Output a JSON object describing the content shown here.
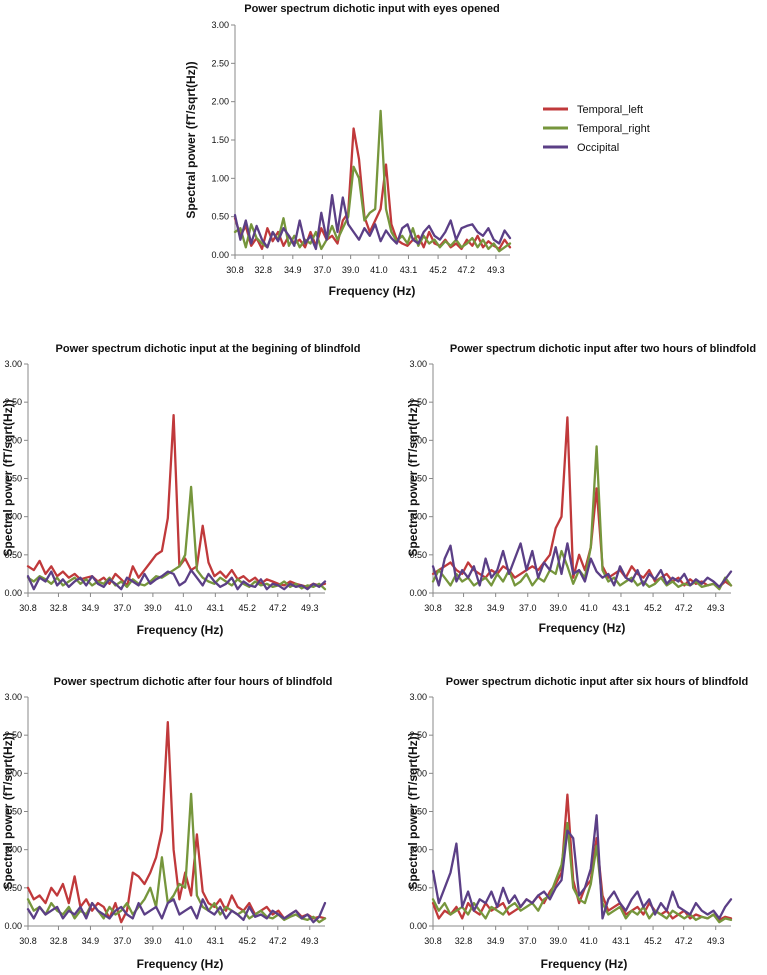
{
  "legend": [
    {
      "name": "Temporal_left",
      "color": "#c0393b"
    },
    {
      "name": "Temporal_right",
      "color": "#76963c"
    },
    {
      "name": "Occipital",
      "color": "#5b3f86"
    }
  ],
  "chart_data": [
    {
      "type": "line",
      "title": "Power spectrum dichotic input with eyes opened",
      "xlabel": "Frequency (Hz)",
      "ylabel": "Spectral power (fT/sqrt(Hz))",
      "ylim": [
        0,
        3
      ],
      "yticks": [
        "0.00",
        "0.50",
        "1.00",
        "1.50",
        "2.00",
        "2.50",
        "3.00"
      ],
      "xticks": [
        "30.8",
        "32.8",
        "34.9",
        "37.0",
        "39.0",
        "41.0",
        "43.1",
        "45.2",
        "47.2",
        "49.3"
      ],
      "x_range": [
        30.8,
        50.3
      ],
      "series": [
        {
          "name": "Temporal_left",
          "color": "#c0393b",
          "values": [
            0.48,
            0.25,
            0.38,
            0.12,
            0.22,
            0.08,
            0.35,
            0.18,
            0.3,
            0.12,
            0.25,
            0.15,
            0.2,
            0.1,
            0.3,
            0.12,
            0.35,
            0.2,
            0.25,
            0.15,
            0.45,
            0.55,
            1.65,
            1.25,
            0.5,
            0.3,
            0.45,
            0.6,
            1.18,
            0.4,
            0.2,
            0.15,
            0.12,
            0.2,
            0.25,
            0.1,
            0.3,
            0.15,
            0.12,
            0.2,
            0.1,
            0.15,
            0.08,
            0.2,
            0.12,
            0.25,
            0.1,
            0.18,
            0.12,
            0.08,
            0.2,
            0.1
          ]
        },
        {
          "name": "Temporal_right",
          "color": "#76963c",
          "values": [
            0.3,
            0.35,
            0.1,
            0.4,
            0.22,
            0.15,
            0.1,
            0.3,
            0.2,
            0.48,
            0.12,
            0.25,
            0.1,
            0.2,
            0.15,
            0.3,
            0.08,
            0.2,
            0.38,
            0.2,
            0.35,
            0.5,
            1.15,
            1.0,
            0.45,
            0.55,
            0.6,
            1.88,
            0.6,
            0.3,
            0.18,
            0.25,
            0.15,
            0.35,
            0.12,
            0.25,
            0.15,
            0.2,
            0.1,
            0.18,
            0.12,
            0.2,
            0.1,
            0.15,
            0.22,
            0.1,
            0.2,
            0.08,
            0.15,
            0.05,
            0.1,
            0.15
          ]
        },
        {
          "name": "Occipital",
          "color": "#5b3f86",
          "values": [
            0.52,
            0.2,
            0.45,
            0.15,
            0.38,
            0.2,
            0.1,
            0.3,
            0.18,
            0.35,
            0.25,
            0.12,
            0.45,
            0.15,
            0.25,
            0.08,
            0.55,
            0.2,
            0.78,
            0.3,
            0.75,
            0.4,
            0.3,
            0.2,
            0.35,
            0.25,
            0.4,
            0.18,
            0.32,
            0.22,
            0.15,
            0.35,
            0.4,
            0.2,
            0.15,
            0.3,
            0.38,
            0.25,
            0.2,
            0.3,
            0.45,
            0.2,
            0.35,
            0.38,
            0.4,
            0.3,
            0.25,
            0.35,
            0.2,
            0.15,
            0.32,
            0.22
          ]
        }
      ]
    },
    {
      "type": "line",
      "title": "Power spectrum dichotic input at the begining of blindfold",
      "xlabel": "Frequency (Hz)",
      "ylabel": "Spectral power (fT/sqrt(Hz))",
      "ylim": [
        0,
        3
      ],
      "yticks": [
        "0.00",
        "0.50",
        "1.00",
        "1.50",
        "2.00",
        "2.50",
        "3.00"
      ],
      "xticks": [
        "30.8",
        "32.8",
        "34.9",
        "37.0",
        "39.0",
        "41.0",
        "43.1",
        "45.2",
        "47.2",
        "49.3"
      ],
      "x_range": [
        30.8,
        50.3
      ],
      "series": [
        {
          "name": "Temporal_left",
          "color": "#c0393b",
          "values": [
            0.35,
            0.3,
            0.42,
            0.25,
            0.35,
            0.22,
            0.28,
            0.2,
            0.25,
            0.18,
            0.2,
            0.22,
            0.15,
            0.2,
            0.12,
            0.25,
            0.18,
            0.1,
            0.35,
            0.2,
            0.3,
            0.4,
            0.5,
            0.55,
            0.98,
            2.33,
            0.35,
            0.45,
            0.3,
            0.35,
            0.88,
            0.4,
            0.22,
            0.28,
            0.2,
            0.3,
            0.18,
            0.22,
            0.15,
            0.2,
            0.12,
            0.18,
            0.15,
            0.12,
            0.1,
            0.15,
            0.12,
            0.1,
            0.08,
            0.12,
            0.1,
            0.12
          ]
        },
        {
          "name": "Temporal_right",
          "color": "#76963c",
          "values": [
            0.2,
            0.15,
            0.22,
            0.18,
            0.12,
            0.2,
            0.1,
            0.15,
            0.2,
            0.12,
            0.18,
            0.1,
            0.15,
            0.12,
            0.2,
            0.1,
            0.15,
            0.08,
            0.18,
            0.12,
            0.1,
            0.15,
            0.22,
            0.2,
            0.25,
            0.3,
            0.35,
            0.5,
            1.39,
            0.3,
            0.2,
            0.15,
            0.12,
            0.2,
            0.15,
            0.1,
            0.18,
            0.12,
            0.08,
            0.15,
            0.1,
            0.12,
            0.08,
            0.1,
            0.15,
            0.08,
            0.12,
            0.06,
            0.1,
            0.08,
            0.12,
            0.05
          ]
        },
        {
          "name": "Occipital",
          "color": "#5b3f86",
          "values": [
            0.22,
            0.05,
            0.2,
            0.15,
            0.28,
            0.1,
            0.18,
            0.08,
            0.15,
            0.2,
            0.1,
            0.22,
            0.12,
            0.08,
            0.18,
            0.12,
            0.05,
            0.2,
            0.15,
            0.1,
            0.25,
            0.12,
            0.18,
            0.22,
            0.28,
            0.25,
            0.1,
            0.15,
            0.3,
            0.2,
            0.1,
            0.25,
            0.15,
            0.08,
            0.12,
            0.2,
            0.05,
            0.15,
            0.1,
            0.08,
            0.18,
            0.05,
            0.12,
            0.1,
            0.05,
            0.12,
            0.08,
            0.1,
            0.05,
            0.12,
            0.08,
            0.15
          ]
        }
      ]
    },
    {
      "type": "line",
      "title": "Power spectrum dichotic input after two hours of blindfold",
      "xlabel": "Frequency (Hz)",
      "ylabel": "Spectral power (fT/sqrt(Hz))",
      "ylim": [
        0,
        3
      ],
      "yticks": [
        "0.00",
        "0.50",
        "1.00",
        "1.50",
        "2.00",
        "2.50",
        "3.00"
      ],
      "xticks": [
        "30.8",
        "32.8",
        "34.9",
        "37.0",
        "39.0",
        "41.0",
        "43.1",
        "45.2",
        "47.2",
        "49.3"
      ],
      "x_range": [
        30.8,
        50.3
      ],
      "series": [
        {
          "name": "Temporal_left",
          "color": "#c0393b",
          "values": [
            0.25,
            0.3,
            0.35,
            0.4,
            0.3,
            0.25,
            0.4,
            0.3,
            0.25,
            0.2,
            0.3,
            0.25,
            0.35,
            0.3,
            0.2,
            0.25,
            0.3,
            0.35,
            0.3,
            0.4,
            0.5,
            0.85,
            1.0,
            2.3,
            0.2,
            0.5,
            0.3,
            0.6,
            1.37,
            0.35,
            0.2,
            0.25,
            0.3,
            0.2,
            0.35,
            0.25,
            0.2,
            0.3,
            0.15,
            0.2,
            0.25,
            0.15,
            0.2,
            0.1,
            0.18,
            0.12,
            0.15,
            0.1,
            0.12,
            0.08,
            0.15,
            0.1
          ]
        },
        {
          "name": "Temporal_right",
          "color": "#76963c",
          "values": [
            0.15,
            0.3,
            0.2,
            0.1,
            0.25,
            0.15,
            0.2,
            0.1,
            0.15,
            0.2,
            0.1,
            0.25,
            0.15,
            0.3,
            0.1,
            0.15,
            0.25,
            0.1,
            0.2,
            0.15,
            0.3,
            0.25,
            0.55,
            0.35,
            0.12,
            0.3,
            0.2,
            0.6,
            1.92,
            0.3,
            0.15,
            0.2,
            0.1,
            0.15,
            0.2,
            0.1,
            0.15,
            0.08,
            0.12,
            0.2,
            0.1,
            0.15,
            0.08,
            0.12,
            0.1,
            0.15,
            0.08,
            0.1,
            0.12,
            0.05,
            0.2,
            0.1
          ]
        },
        {
          "name": "Occipital",
          "color": "#5b3f86",
          "values": [
            0.35,
            0.1,
            0.45,
            0.62,
            0.15,
            0.3,
            0.2,
            0.35,
            0.1,
            0.45,
            0.2,
            0.3,
            0.55,
            0.25,
            0.45,
            0.65,
            0.3,
            0.55,
            0.2,
            0.4,
            0.3,
            0.6,
            0.25,
            0.65,
            0.25,
            0.3,
            0.15,
            0.45,
            0.28,
            0.2,
            0.25,
            0.1,
            0.35,
            0.2,
            0.15,
            0.3,
            0.1,
            0.25,
            0.18,
            0.3,
            0.12,
            0.2,
            0.15,
            0.25,
            0.1,
            0.18,
            0.12,
            0.2,
            0.15,
            0.08,
            0.18,
            0.28
          ]
        }
      ]
    },
    {
      "type": "line",
      "title": "Power spectrum dichotic after four hours of blindfold",
      "xlabel": "Frequency (Hz)",
      "ylabel": "Spectral power (fT/sqrt(Hz))",
      "ylim": [
        0,
        3
      ],
      "yticks": [
        "0.00",
        "0.50",
        "1.00",
        "1.50",
        "2.00",
        "2.50",
        "3.00"
      ],
      "xticks": [
        "30.8",
        "32.8",
        "34.9",
        "37.0",
        "39.0",
        "41.0",
        "43.1",
        "45.2",
        "47.2",
        "49.3"
      ],
      "x_range": [
        30.8,
        50.3
      ],
      "series": [
        {
          "name": "Temporal_left",
          "color": "#c0393b",
          "values": [
            0.5,
            0.35,
            0.4,
            0.3,
            0.5,
            0.4,
            0.55,
            0.3,
            0.65,
            0.25,
            0.35,
            0.2,
            0.3,
            0.25,
            0.1,
            0.3,
            0.05,
            0.2,
            0.7,
            0.65,
            0.55,
            0.7,
            0.9,
            1.25,
            2.67,
            1.0,
            0.35,
            0.7,
            0.4,
            1.2,
            0.45,
            0.3,
            0.25,
            0.35,
            0.2,
            0.4,
            0.25,
            0.2,
            0.3,
            0.15,
            0.2,
            0.25,
            0.15,
            0.2,
            0.1,
            0.15,
            0.2,
            0.12,
            0.15,
            0.1,
            0.12,
            0.1
          ]
        },
        {
          "name": "Temporal_right",
          "color": "#76963c",
          "values": [
            0.35,
            0.2,
            0.25,
            0.15,
            0.3,
            0.2,
            0.15,
            0.25,
            0.1,
            0.2,
            0.15,
            0.3,
            0.2,
            0.1,
            0.25,
            0.15,
            0.2,
            0.3,
            0.15,
            0.25,
            0.35,
            0.5,
            0.25,
            0.9,
            0.3,
            0.4,
            0.55,
            0.5,
            1.73,
            0.4,
            0.25,
            0.2,
            0.3,
            0.15,
            0.25,
            0.2,
            0.15,
            0.2,
            0.1,
            0.15,
            0.2,
            0.12,
            0.1,
            0.15,
            0.08,
            0.12,
            0.15,
            0.1,
            0.08,
            0.12,
            0.05,
            0.1
          ]
        },
        {
          "name": "Occipital",
          "color": "#5b3f86",
          "values": [
            0.22,
            0.1,
            0.25,
            0.15,
            0.2,
            0.25,
            0.1,
            0.2,
            0.15,
            0.25,
            0.1,
            0.3,
            0.2,
            0.15,
            0.1,
            0.2,
            0.25,
            0.15,
            0.1,
            0.3,
            0.15,
            0.2,
            0.25,
            0.1,
            0.3,
            0.35,
            0.15,
            0.2,
            0.25,
            0.1,
            0.35,
            0.2,
            0.15,
            0.25,
            0.1,
            0.2,
            0.15,
            0.08,
            0.25,
            0.12,
            0.15,
            0.1,
            0.2,
            0.15,
            0.1,
            0.15,
            0.2,
            0.1,
            0.15,
            0.05,
            0.12,
            0.3
          ]
        }
      ]
    },
    {
      "type": "line",
      "title": "Power spectrum dichotic input after six hours of blindfold",
      "xlabel": "Frequency (Hz)",
      "ylabel": "Spectral power (fT/sqrt(Hz))",
      "ylim": [
        0,
        3
      ],
      "yticks": [
        "0.00",
        "0.50",
        "1.00",
        "1.50",
        "2.00",
        "2.50",
        "3.00"
      ],
      "xticks": [
        "30.8",
        "32.8",
        "34.9",
        "37.0",
        "39.0",
        "41.0",
        "43.1",
        "45.2",
        "47.2",
        "49.3"
      ],
      "x_range": [
        30.8,
        50.3
      ],
      "series": [
        {
          "name": "Temporal_left",
          "color": "#c0393b",
          "values": [
            0.3,
            0.1,
            0.2,
            0.15,
            0.25,
            0.1,
            0.3,
            0.2,
            0.15,
            0.3,
            0.2,
            0.25,
            0.3,
            0.15,
            0.2,
            0.25,
            0.35,
            0.3,
            0.4,
            0.3,
            0.45,
            0.55,
            0.7,
            1.72,
            0.6,
            0.3,
            0.5,
            0.6,
            1.15,
            0.4,
            0.2,
            0.25,
            0.3,
            0.15,
            0.2,
            0.25,
            0.15,
            0.3,
            0.2,
            0.15,
            0.2,
            0.1,
            0.15,
            0.2,
            0.1,
            0.15,
            0.12,
            0.1,
            0.15,
            0.08,
            0.12,
            0.1
          ]
        },
        {
          "name": "Temporal_right",
          "color": "#76963c",
          "values": [
            0.35,
            0.2,
            0.3,
            0.15,
            0.2,
            0.25,
            0.15,
            0.3,
            0.2,
            0.1,
            0.25,
            0.2,
            0.15,
            0.25,
            0.3,
            0.2,
            0.25,
            0.3,
            0.2,
            0.35,
            0.4,
            0.6,
            0.8,
            1.35,
            0.5,
            0.35,
            0.3,
            0.55,
            1.05,
            0.3,
            0.15,
            0.2,
            0.25,
            0.1,
            0.2,
            0.15,
            0.25,
            0.1,
            0.2,
            0.15,
            0.1,
            0.2,
            0.15,
            0.1,
            0.15,
            0.08,
            0.12,
            0.1,
            0.15,
            0.05,
            0.1,
            0.08
          ]
        },
        {
          "name": "Occipital",
          "color": "#5b3f86",
          "values": [
            0.72,
            0.3,
            0.5,
            0.7,
            1.08,
            0.25,
            0.45,
            0.2,
            0.35,
            0.3,
            0.45,
            0.25,
            0.5,
            0.3,
            0.4,
            0.25,
            0.35,
            0.3,
            0.4,
            0.45,
            0.35,
            0.5,
            0.6,
            1.25,
            1.15,
            0.4,
            0.5,
            0.75,
            1.45,
            0.1,
            0.35,
            0.45,
            0.3,
            0.2,
            0.35,
            0.45,
            0.25,
            0.35,
            0.15,
            0.3,
            0.2,
            0.45,
            0.25,
            0.2,
            0.15,
            0.3,
            0.2,
            0.15,
            0.2,
            0.1,
            0.25,
            0.35
          ]
        }
      ]
    }
  ]
}
